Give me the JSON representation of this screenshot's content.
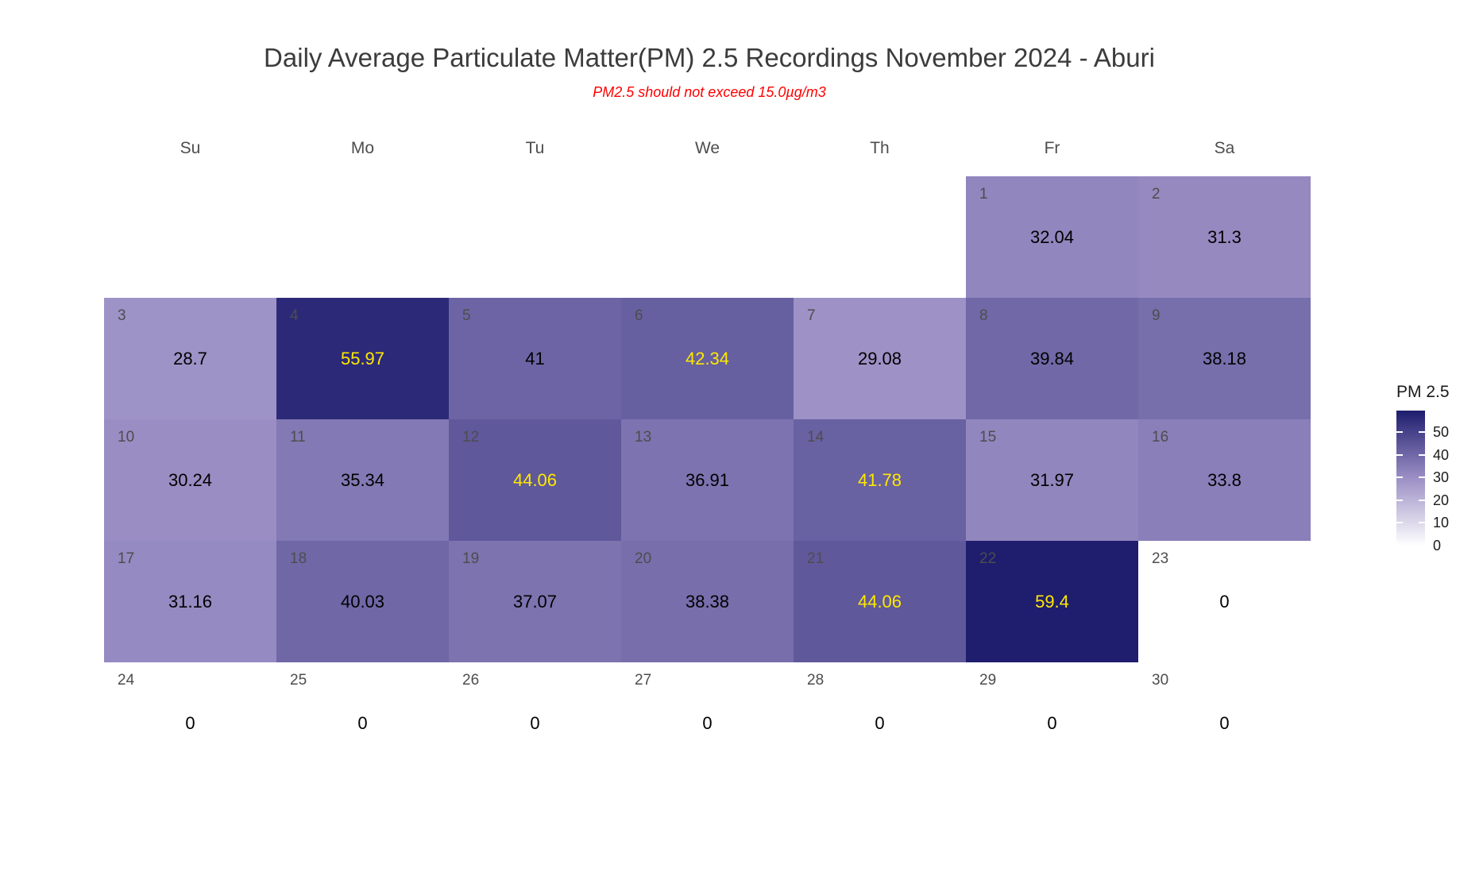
{
  "title": "Daily Average Particulate Matter(PM) 2.5 Recordings November 2024 -  Aburi",
  "subtitle": "PM2.5 should not exceed 15.0µg/m3",
  "chart_data": {
    "type": "heatmap",
    "subtype": "calendar-month",
    "month": "November 2024",
    "location": "Aburi",
    "weekday_headers": [
      "Su",
      "Mo",
      "Tu",
      "We",
      "Th",
      "Fr",
      "Sa"
    ],
    "cells": [
      {
        "day": 1,
        "col": 5,
        "row": 0,
        "value": 32.04,
        "label": "32.04"
      },
      {
        "day": 2,
        "col": 6,
        "row": 0,
        "value": 31.3,
        "label": "31.3"
      },
      {
        "day": 3,
        "col": 0,
        "row": 1,
        "value": 28.7,
        "label": "28.7"
      },
      {
        "day": 4,
        "col": 1,
        "row": 1,
        "value": 55.97,
        "label": "55.97"
      },
      {
        "day": 5,
        "col": 2,
        "row": 1,
        "value": 41,
        "label": "41"
      },
      {
        "day": 6,
        "col": 3,
        "row": 1,
        "value": 42.34,
        "label": "42.34"
      },
      {
        "day": 7,
        "col": 4,
        "row": 1,
        "value": 29.08,
        "label": "29.08"
      },
      {
        "day": 8,
        "col": 5,
        "row": 1,
        "value": 39.84,
        "label": "39.84"
      },
      {
        "day": 9,
        "col": 6,
        "row": 1,
        "value": 38.18,
        "label": "38.18"
      },
      {
        "day": 10,
        "col": 0,
        "row": 2,
        "value": 30.24,
        "label": "30.24"
      },
      {
        "day": 11,
        "col": 1,
        "row": 2,
        "value": 35.34,
        "label": "35.34"
      },
      {
        "day": 12,
        "col": 2,
        "row": 2,
        "value": 44.06,
        "label": "44.06"
      },
      {
        "day": 13,
        "col": 3,
        "row": 2,
        "value": 36.91,
        "label": "36.91"
      },
      {
        "day": 14,
        "col": 4,
        "row": 2,
        "value": 41.78,
        "label": "41.78"
      },
      {
        "day": 15,
        "col": 5,
        "row": 2,
        "value": 31.97,
        "label": "31.97"
      },
      {
        "day": 16,
        "col": 6,
        "row": 2,
        "value": 33.8,
        "label": "33.8"
      },
      {
        "day": 17,
        "col": 0,
        "row": 3,
        "value": 31.16,
        "label": "31.16"
      },
      {
        "day": 18,
        "col": 1,
        "row": 3,
        "value": 40.03,
        "label": "40.03"
      },
      {
        "day": 19,
        "col": 2,
        "row": 3,
        "value": 37.07,
        "label": "37.07"
      },
      {
        "day": 20,
        "col": 3,
        "row": 3,
        "value": 38.38,
        "label": "38.38"
      },
      {
        "day": 21,
        "col": 4,
        "row": 3,
        "value": 44.06,
        "label": "44.06"
      },
      {
        "day": 22,
        "col": 5,
        "row": 3,
        "value": 59.4,
        "label": "59.4"
      },
      {
        "day": 23,
        "col": 6,
        "row": 3,
        "value": 0,
        "label": "0"
      },
      {
        "day": 24,
        "col": 0,
        "row": 4,
        "value": 0,
        "label": "0"
      },
      {
        "day": 25,
        "col": 1,
        "row": 4,
        "value": 0,
        "label": "0"
      },
      {
        "day": 26,
        "col": 2,
        "row": 4,
        "value": 0,
        "label": "0"
      },
      {
        "day": 27,
        "col": 3,
        "row": 4,
        "value": 0,
        "label": "0"
      },
      {
        "day": 28,
        "col": 4,
        "row": 4,
        "value": 0,
        "label": "0"
      },
      {
        "day": 29,
        "col": 5,
        "row": 4,
        "value": 0,
        "label": "0"
      },
      {
        "day": 30,
        "col": 6,
        "row": 4,
        "value": 0,
        "label": "0"
      }
    ],
    "legend": {
      "title": "PM 2.5",
      "position": "right",
      "ticks": [
        50,
        40,
        30,
        20,
        10,
        0
      ],
      "min": 0,
      "max": 59.4
    },
    "colors": {
      "scale_low": "#FFFFFF",
      "scale_mid": "#9A8EC4",
      "scale_mid_value": 30,
      "scale_high": "#1E1D6E",
      "value_text": "#000000",
      "value_text_high": "#FFE800",
      "value_text_high_threshold": 41.5,
      "day_number": "#4D4D4D",
      "weekday_header": "#4D4D4D",
      "title_text": "#3C3C3C",
      "subtitle_text": "#FF0000"
    }
  }
}
